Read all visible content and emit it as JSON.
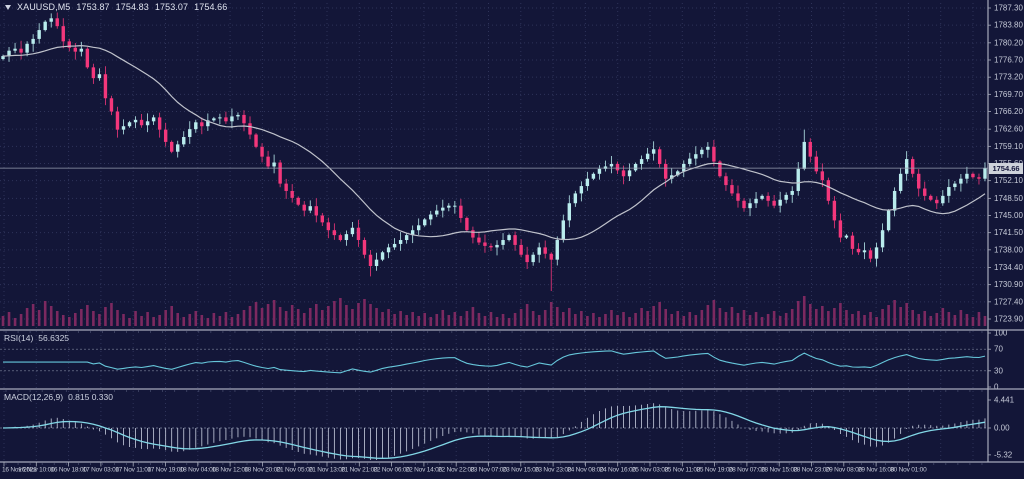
{
  "window": {
    "symbol": "XAUUSD,M5",
    "open": "1753.87",
    "high": "1754.83",
    "low": "1753.07",
    "close": "1754.66"
  },
  "price_axis": {
    "labels": [
      "1787.30",
      "1783.80",
      "1780.20",
      "1776.70",
      "1773.20",
      "1769.70",
      "1766.20",
      "1762.60",
      "1759.10",
      "1755.60",
      "1752.10",
      "1748.50",
      "1745.00",
      "1741.50",
      "1738.00",
      "1734.40",
      "1730.90",
      "1727.40",
      "1723.90"
    ],
    "current_price": "1754.66",
    "top": 1787.3,
    "bottom": 1723.9
  },
  "time_axis": {
    "labels": [
      "16 Nov 2022",
      "16 Nov 10:00",
      "16 Nov 18:00",
      "17 Nov 03:00",
      "17 Nov 11:00",
      "17 Nov 19:00",
      "18 Nov 04:00",
      "18 Nov 12:00",
      "18 Nov 20:00",
      "21 Nov 05:00",
      "21 Nov 13:00",
      "21 Nov 21:00",
      "22 Nov 06:00",
      "22 Nov 14:00",
      "22 Nov 22:00",
      "23 Nov 07:00",
      "23 Nov 15:00",
      "23 Nov 23:00",
      "24 Nov 08:00",
      "24 Nov 16:00",
      "25 Nov 03:00",
      "25 Nov 11:00",
      "25 Nov 19:00",
      "28 Nov 07:00",
      "28 Nov 15:00",
      "28 Nov 23:00",
      "29 Nov 08:00",
      "29 Nov 16:00",
      "30 Nov 01:00"
    ]
  },
  "indicators": {
    "rsi": {
      "name": "RSI(14)",
      "value": "56.6325",
      "period": 14,
      "levels": [
        70,
        30
      ],
      "scale_labels": [
        "100",
        "70",
        "30",
        "0"
      ]
    },
    "macd": {
      "name": "MACD(12,26,9)",
      "value": "0.815 0.330",
      "fast": 12,
      "slow": 26,
      "signal": 9,
      "scale_labels": [
        "4.441",
        "0.00",
        "-5.32"
      ]
    }
  },
  "colors": {
    "background": "#131638",
    "bull": "#b9eced",
    "bear": "#f3377b",
    "volume": "#7c2960",
    "ma": "#c0c3cc",
    "rsi_line": "#66c6da",
    "rsi_level": "#7e849c",
    "macd_line": "#82d7e6",
    "macd_hist": "#c9cfe0",
    "grid": "#2e3359",
    "axis_text": "#c6cad8",
    "divider": "#a6aaba",
    "tick_minor": "#4a4f70",
    "price_line": "#969cae",
    "tag_bg": "#ced2da",
    "tag_text": "#14163a"
  },
  "chart_data": {
    "type": "candlestick",
    "title": "XAUUSD,M5",
    "ylim": [
      1723.9,
      1787.3
    ],
    "ma_period": 20,
    "closes": [
      1777.5,
      1778.6,
      1779.0,
      1778.2,
      1780.0,
      1781.0,
      1782.8,
      1784.5,
      1785.2,
      1783.6,
      1780.5,
      1779.2,
      1778.4,
      1779.0,
      1775.2,
      1773.0,
      1773.8,
      1768.9,
      1766.2,
      1762.5,
      1763.2,
      1764.0,
      1764.5,
      1763.4,
      1764.2,
      1765.0,
      1762.5,
      1760.0,
      1758.0,
      1759.5,
      1761.0,
      1762.6,
      1764.0,
      1763.2,
      1764.4,
      1764.8,
      1765.0,
      1764.2,
      1765.2,
      1765.5,
      1763.8,
      1761.5,
      1759.0,
      1757.0,
      1755.0,
      1755.8,
      1751.5,
      1750.0,
      1748.6,
      1747.2,
      1746.0,
      1746.9,
      1745.0,
      1743.6,
      1742.0,
      1741.0,
      1740.0,
      1741.2,
      1742.5,
      1740.0,
      1737.0,
      1734.7,
      1736.0,
      1737.5,
      1738.5,
      1739.2,
      1740.0,
      1741.0,
      1742.0,
      1743.0,
      1744.2,
      1745.2,
      1746.0,
      1746.6,
      1747.0,
      1747.0,
      1744.5,
      1742.0,
      1740.5,
      1739.5,
      1738.8,
      1738.5,
      1739.0,
      1740.0,
      1741.0,
      1739.0,
      1737.0,
      1735.5,
      1737.0,
      1738.5,
      1737.2,
      1736.0,
      1740.0,
      1744.0,
      1747.5,
      1749.5,
      1751.0,
      1752.5,
      1753.5,
      1754.5,
      1755.0,
      1755.5,
      1754.2,
      1753.0,
      1754.2,
      1755.5,
      1756.5,
      1757.6,
      1758.5,
      1755.5,
      1752.5,
      1753.2,
      1754.0,
      1755.5,
      1756.6,
      1757.5,
      1758.4,
      1759.0,
      1756.0,
      1753.0,
      1751.2,
      1749.5,
      1748.0,
      1746.5,
      1747.5,
      1748.4,
      1749.0,
      1748.0,
      1747.0,
      1748.2,
      1749.2,
      1750.0,
      1754.5,
      1760.0,
      1757.0,
      1754.0,
      1752.2,
      1748.0,
      1744.0,
      1740.5,
      1740.9,
      1738.2,
      1737.5,
      1737.9,
      1736.2,
      1738.5,
      1742.0,
      1746.0,
      1750.0,
      1753.5,
      1756.5,
      1753.5,
      1750.5,
      1749.0,
      1748.2,
      1747.5,
      1749.0,
      1750.8,
      1751.5,
      1752.5,
      1753.5,
      1752.8,
      1752.5,
      1754.66
    ],
    "wick_overrides": {
      "8": {
        "high": 1786.2
      },
      "61": {
        "low": 1732.6
      },
      "91": {
        "low": 1729.6
      },
      "133": {
        "high": 1762.5
      }
    },
    "volumes": [
      10,
      14,
      8,
      12,
      18,
      22,
      16,
      25,
      20,
      15,
      11,
      9,
      13,
      17,
      21,
      15,
      12,
      19,
      23,
      16,
      12,
      8,
      15,
      10,
      14,
      9,
      11,
      16,
      20,
      13,
      9,
      12,
      15,
      11,
      8,
      13,
      10,
      14,
      9,
      12,
      16,
      20,
      24,
      18,
      22,
      26,
      19,
      15,
      21,
      17,
      13,
      18,
      22,
      16,
      20,
      25,
      28,
      21,
      17,
      23,
      27,
      22,
      18,
      14,
      17,
      12,
      15,
      11,
      14,
      10,
      13,
      9,
      12,
      16,
      11,
      14,
      10,
      15,
      19,
      13,
      10,
      14,
      9,
      12,
      8,
      13,
      17,
      22,
      15,
      11,
      16,
      24,
      19,
      14,
      18,
      12,
      15,
      10,
      13,
      9,
      12,
      16,
      11,
      14,
      9,
      13,
      18,
      15,
      20,
      24,
      17,
      12,
      15,
      10,
      14,
      11,
      16,
      21,
      26,
      18,
      14,
      19,
      13,
      16,
      11,
      14,
      9,
      12,
      15,
      10,
      13,
      17,
      25,
      30,
      22,
      17,
      20,
      15,
      18,
      23,
      16,
      12,
      15,
      11,
      14,
      9,
      17,
      21,
      26,
      19,
      23,
      16,
      12,
      15,
      10,
      13,
      18,
      14,
      11,
      16,
      12,
      9,
      14,
      10
    ]
  }
}
